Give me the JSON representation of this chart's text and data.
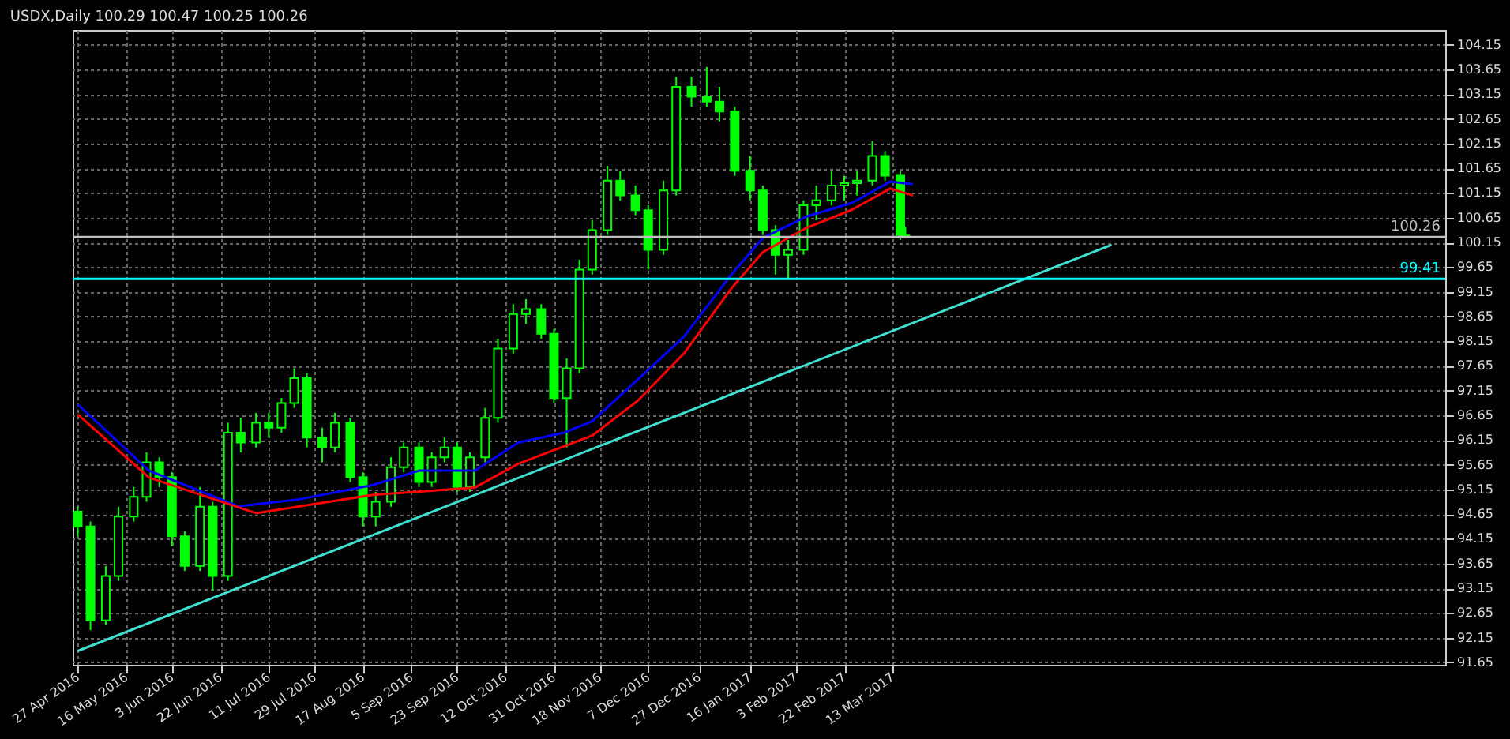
{
  "chart_data": {
    "type": "candlestick",
    "title": "USDX,Daily  100.29 100.47 100.25 100.26",
    "color": "#00ff00",
    "x": [
      "2016-04-27",
      "2016-05-02",
      "2016-05-08",
      "2016-05-13",
      "2016-05-19",
      "2016-05-24",
      "2016-05-29",
      "2016-06-03",
      "2016-06-08",
      "2016-06-14",
      "2016-06-19",
      "2016-06-25",
      "2016-06-30",
      "2016-07-06",
      "2016-07-11",
      "2016-07-16",
      "2016-07-21",
      "2016-07-26",
      "2016-08-01",
      "2016-08-06",
      "2016-08-12",
      "2016-08-17",
      "2016-08-22",
      "2016-08-28",
      "2016-09-02",
      "2016-09-08",
      "2016-09-13",
      "2016-09-18",
      "2016-09-23",
      "2016-09-28",
      "2016-10-04",
      "2016-10-09",
      "2016-10-15",
      "2016-10-20",
      "2016-10-26",
      "2016-10-31",
      "2016-11-05",
      "2016-11-10",
      "2016-11-15",
      "2016-11-21",
      "2016-11-26",
      "2016-12-02",
      "2016-12-07",
      "2016-12-13",
      "2016-12-18",
      "2016-12-24",
      "2016-12-30",
      "2017-01-04",
      "2017-01-10",
      "2017-01-16",
      "2017-01-21",
      "2017-01-26",
      "2017-01-31",
      "2017-02-06",
      "2017-02-11",
      "2017-02-17",
      "2017-02-22",
      "2017-02-27",
      "2017-03-05",
      "2017-03-10",
      "2017-03-16",
      "2017-03-18"
    ],
    "ohlc": [
      [
        94.7,
        94.8,
        94.2,
        94.4
      ],
      [
        94.4,
        94.5,
        92.3,
        92.5
      ],
      [
        92.5,
        93.6,
        92.4,
        93.4
      ],
      [
        93.4,
        94.8,
        93.3,
        94.6
      ],
      [
        94.6,
        95.2,
        94.5,
        95.0
      ],
      [
        95.0,
        95.9,
        94.9,
        95.7
      ],
      [
        95.7,
        95.8,
        95.2,
        95.4
      ],
      [
        95.4,
        95.5,
        94.0,
        94.2
      ],
      [
        94.2,
        94.3,
        93.5,
        93.6
      ],
      [
        93.6,
        95.2,
        93.5,
        94.8
      ],
      [
        94.8,
        94.9,
        93.1,
        93.4
      ],
      [
        93.4,
        96.5,
        93.3,
        96.3
      ],
      [
        96.3,
        96.6,
        95.9,
        96.1
      ],
      [
        96.1,
        96.7,
        96.0,
        96.5
      ],
      [
        96.5,
        96.7,
        96.2,
        96.4
      ],
      [
        96.4,
        97.0,
        96.3,
        96.9
      ],
      [
        96.9,
        97.6,
        96.8,
        97.4
      ],
      [
        97.4,
        97.5,
        96.0,
        96.2
      ],
      [
        96.2,
        96.4,
        95.7,
        96.0
      ],
      [
        96.0,
        96.7,
        95.9,
        96.5
      ],
      [
        96.5,
        96.6,
        95.3,
        95.4
      ],
      [
        95.4,
        95.5,
        94.4,
        94.6
      ],
      [
        94.6,
        95.1,
        94.4,
        94.9
      ],
      [
        94.9,
        95.8,
        94.8,
        95.6
      ],
      [
        95.6,
        96.1,
        95.5,
        96.0
      ],
      [
        96.0,
        96.1,
        95.2,
        95.3
      ],
      [
        95.3,
        95.9,
        95.2,
        95.8
      ],
      [
        95.8,
        96.2,
        95.7,
        96.0
      ],
      [
        96.0,
        96.1,
        95.1,
        95.2
      ],
      [
        95.2,
        95.9,
        95.1,
        95.8
      ],
      [
        95.8,
        96.8,
        95.7,
        96.6
      ],
      [
        96.6,
        98.2,
        96.5,
        98.0
      ],
      [
        98.0,
        98.9,
        97.9,
        98.7
      ],
      [
        98.7,
        99.0,
        98.5,
        98.8
      ],
      [
        98.8,
        98.9,
        98.2,
        98.3
      ],
      [
        98.3,
        98.4,
        96.9,
        97.0
      ],
      [
        97.0,
        97.8,
        96.0,
        97.6
      ],
      [
        97.6,
        99.8,
        97.5,
        99.6
      ],
      [
        99.6,
        100.6,
        99.5,
        100.4
      ],
      [
        100.4,
        101.7,
        100.3,
        101.4
      ],
      [
        101.4,
        101.6,
        101.0,
        101.1
      ],
      [
        101.1,
        101.3,
        100.7,
        100.8
      ],
      [
        100.8,
        100.9,
        99.6,
        100.0
      ],
      [
        100.0,
        101.4,
        99.9,
        101.2
      ],
      [
        101.2,
        103.5,
        101.1,
        103.3
      ],
      [
        103.3,
        103.5,
        102.9,
        103.1
      ],
      [
        103.1,
        103.7,
        102.9,
        103.0
      ],
      [
        103.0,
        103.3,
        102.6,
        102.8
      ],
      [
        102.8,
        102.9,
        101.5,
        101.6
      ],
      [
        101.6,
        101.9,
        101.0,
        101.2
      ],
      [
        101.2,
        101.3,
        100.3,
        100.4
      ],
      [
        100.4,
        100.5,
        99.5,
        99.9
      ],
      [
        99.9,
        100.2,
        99.4,
        100.0
      ],
      [
        100.0,
        101.0,
        99.9,
        100.9
      ],
      [
        100.9,
        101.3,
        100.6,
        101.0
      ],
      [
        101.0,
        101.6,
        100.9,
        101.3
      ],
      [
        101.3,
        101.5,
        101.0,
        101.35
      ],
      [
        101.35,
        101.6,
        101.1,
        101.4
      ],
      [
        101.4,
        102.2,
        101.3,
        101.9
      ],
      [
        101.9,
        102.0,
        101.4,
        101.5
      ],
      [
        101.5,
        101.6,
        100.2,
        100.3
      ],
      [
        100.29,
        100.47,
        100.25,
        100.26
      ]
    ],
    "series": [
      {
        "type": "line",
        "color": "#0000ff",
        "x": [
          "2016-04-27",
          "2016-05-25",
          "2016-06-29",
          "2016-07-23",
          "2016-08-21",
          "2016-09-08",
          "2016-09-30",
          "2016-10-17",
          "2016-11-04",
          "2016-11-15",
          "2016-12-03",
          "2016-12-21",
          "2017-01-09",
          "2017-01-21",
          "2017-02-07",
          "2017-02-25",
          "2017-03-12",
          "2017-03-21"
        ],
        "values": [
          96.87,
          95.53,
          94.81,
          94.95,
          95.24,
          95.53,
          95.53,
          96.1,
          96.3,
          96.53,
          97.38,
          98.24,
          99.52,
          100.24,
          100.67,
          100.95,
          101.38,
          101.33
        ]
      },
      {
        "type": "line",
        "color": "#ff0000",
        "x": [
          "2016-04-27",
          "2016-05-25",
          "2016-07-06",
          "2016-08-21",
          "2016-09-30",
          "2016-10-17",
          "2016-11-15",
          "2016-12-03",
          "2016-12-21",
          "2017-01-09",
          "2017-01-21",
          "2017-02-07",
          "2017-02-25",
          "2017-03-12",
          "2017-03-21"
        ],
        "values": [
          96.67,
          95.39,
          94.67,
          95.04,
          95.19,
          95.67,
          96.24,
          96.95,
          97.9,
          99.24,
          99.95,
          100.44,
          100.81,
          101.24,
          101.1
        ]
      },
      {
        "type": "line",
        "color": "#40e0d0",
        "x": [
          "2016-04-27",
          "2017-06-07"
        ],
        "values": [
          91.88,
          100.1
        ]
      }
    ],
    "ref_lines": [
      {
        "axis": "y",
        "value": 99.41,
        "label": "99.41",
        "color": "#00ffff"
      },
      {
        "axis": "y",
        "value": 100.26,
        "label": "100.26",
        "color": "#c0c0c0"
      }
    ],
    "xlim": [
      "2016-04-25",
      "2017-10-16"
    ],
    "xticks": [
      {
        "value": "2016-04-27",
        "label": "27 Apr 2016"
      },
      {
        "value": "2016-05-16",
        "label": "16 May 2016"
      },
      {
        "value": "2016-06-03",
        "label": "3 Jun 2016"
      },
      {
        "value": "2016-06-22",
        "label": "22 Jun 2016"
      },
      {
        "value": "2016-07-11",
        "label": "11 Jul 2016"
      },
      {
        "value": "2016-07-29",
        "label": "29 Jul 2016"
      },
      {
        "value": "2016-08-17",
        "label": "17 Aug 2016"
      },
      {
        "value": "2016-09-05",
        "label": "5 Sep 2016"
      },
      {
        "value": "2016-09-23",
        "label": "23 Sep 2016"
      },
      {
        "value": "2016-10-12",
        "label": "12 Oct 2016"
      },
      {
        "value": "2016-10-31",
        "label": "31 Oct 2016"
      },
      {
        "value": "2016-11-18",
        "label": "18 Nov 2016"
      },
      {
        "value": "2016-12-07",
        "label": "7 Dec 2016"
      },
      {
        "value": "2016-12-27",
        "label": "27 Dec 2016"
      },
      {
        "value": "2017-01-16",
        "label": "16 Jan 2017"
      },
      {
        "value": "2017-02-03",
        "label": "3 Feb 2017"
      },
      {
        "value": "2017-02-22",
        "label": "22 Feb 2017"
      },
      {
        "value": "2017-03-13",
        "label": "13 Mar 2017"
      }
    ],
    "ylim": [
      91.6,
      104.45
    ],
    "yticks": [
      91.65,
      92.15,
      92.65,
      93.15,
      93.65,
      94.15,
      94.65,
      95.15,
      95.65,
      96.15,
      96.65,
      97.15,
      97.65,
      98.15,
      98.65,
      99.15,
      99.65,
      100.15,
      100.65,
      101.15,
      101.65,
      102.15,
      102.65,
      103.15,
      103.65,
      104.15
    ],
    "grid": true
  }
}
